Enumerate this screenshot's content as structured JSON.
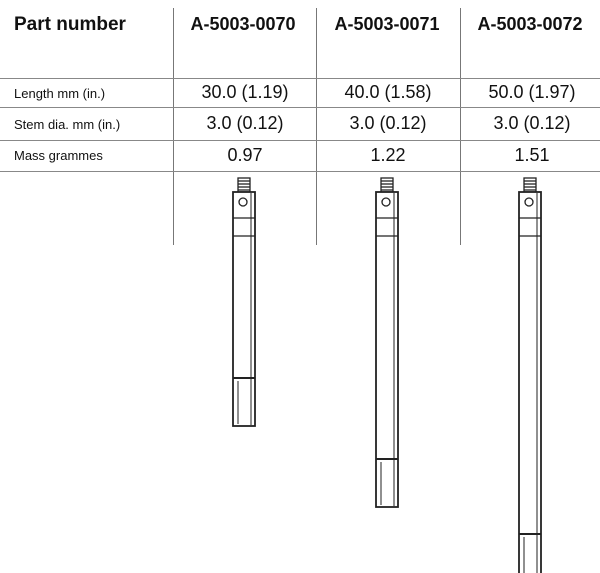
{
  "table": {
    "header_label": "Part number",
    "columns": [
      "A-5003-0070",
      "A-5003-0071",
      "A-5003-0072"
    ],
    "rows": [
      {
        "label": "Length mm (in.)",
        "values": [
          "30.0 (1.19)",
          "40.0 (1.58)",
          "50.0 (1.97)"
        ]
      },
      {
        "label": "Stem dia. mm (in.)",
        "values": [
          "3.0 (0.12)",
          "3.0 (0.12)",
          "3.0 (0.12)"
        ]
      },
      {
        "label": "Mass grammes",
        "values": [
          "0.97",
          "1.22",
          "1.51"
        ]
      }
    ]
  },
  "illustration": {
    "item": "stylus-extension",
    "relative_lengths_mm": [
      30.0,
      40.0,
      50.0
    ]
  },
  "colors": {
    "line": "#777777",
    "text": "#111111",
    "outline": "#222222"
  }
}
